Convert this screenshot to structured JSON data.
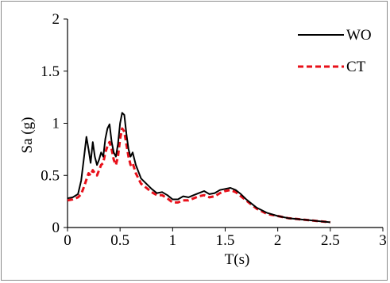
{
  "chart_data": {
    "type": "line",
    "xlabel": "T(s)",
    "ylabel": "Sa (g)",
    "xlim": [
      0,
      3
    ],
    "ylim": [
      0,
      2
    ],
    "xticks": [
      0,
      0.5,
      1,
      1.5,
      2,
      2.5,
      3
    ],
    "xtick_labels": [
      "0",
      "0.5",
      "1",
      "1.5",
      "2",
      "2.5",
      "3"
    ],
    "yticks": [
      0,
      0.5,
      1,
      1.5,
      2
    ],
    "ytick_labels": [
      "0",
      "0.5",
      "1",
      "1.5",
      "2"
    ],
    "grid": false,
    "legend_position": "top-right",
    "series": [
      {
        "name": "WO",
        "color": "#000000",
        "style": "solid",
        "x": [
          0,
          0.05,
          0.1,
          0.13,
          0.16,
          0.18,
          0.2,
          0.22,
          0.24,
          0.26,
          0.28,
          0.3,
          0.32,
          0.34,
          0.36,
          0.38,
          0.4,
          0.42,
          0.44,
          0.46,
          0.48,
          0.5,
          0.52,
          0.54,
          0.56,
          0.58,
          0.6,
          0.62,
          0.65,
          0.7,
          0.75,
          0.8,
          0.85,
          0.9,
          0.95,
          1.0,
          1.05,
          1.1,
          1.15,
          1.2,
          1.25,
          1.3,
          1.35,
          1.4,
          1.45,
          1.5,
          1.55,
          1.6,
          1.65,
          1.7,
          1.75,
          1.8,
          1.9,
          2.0,
          2.1,
          2.2,
          2.3,
          2.4,
          2.5
        ],
        "y": [
          0.28,
          0.29,
          0.32,
          0.45,
          0.7,
          0.87,
          0.75,
          0.62,
          0.82,
          0.68,
          0.6,
          0.65,
          0.72,
          0.68,
          0.85,
          0.95,
          0.99,
          0.82,
          0.72,
          0.68,
          0.8,
          1.0,
          1.1,
          1.08,
          0.9,
          0.75,
          0.68,
          0.72,
          0.6,
          0.47,
          0.42,
          0.37,
          0.33,
          0.34,
          0.31,
          0.27,
          0.27,
          0.3,
          0.29,
          0.31,
          0.33,
          0.35,
          0.32,
          0.33,
          0.36,
          0.37,
          0.38,
          0.36,
          0.32,
          0.27,
          0.23,
          0.19,
          0.14,
          0.11,
          0.09,
          0.08,
          0.07,
          0.06,
          0.05
        ]
      },
      {
        "name": "CT",
        "color": "#e8101a",
        "style": "dashed",
        "x": [
          0,
          0.05,
          0.1,
          0.13,
          0.16,
          0.18,
          0.2,
          0.22,
          0.24,
          0.26,
          0.28,
          0.3,
          0.32,
          0.34,
          0.36,
          0.38,
          0.4,
          0.42,
          0.44,
          0.46,
          0.48,
          0.5,
          0.52,
          0.54,
          0.56,
          0.58,
          0.6,
          0.62,
          0.65,
          0.7,
          0.75,
          0.8,
          0.85,
          0.9,
          0.95,
          1.0,
          1.05,
          1.1,
          1.15,
          1.2,
          1.25,
          1.3,
          1.35,
          1.4,
          1.45,
          1.5,
          1.55,
          1.6,
          1.65,
          1.7,
          1.75,
          1.8,
          1.9,
          2.0,
          2.1,
          2.2,
          2.3,
          2.4,
          2.5
        ],
        "y": [
          0.26,
          0.27,
          0.29,
          0.32,
          0.4,
          0.46,
          0.52,
          0.5,
          0.55,
          0.52,
          0.5,
          0.55,
          0.6,
          0.62,
          0.72,
          0.78,
          0.82,
          0.75,
          0.65,
          0.6,
          0.68,
          0.85,
          0.95,
          0.92,
          0.8,
          0.68,
          0.6,
          0.62,
          0.52,
          0.42,
          0.38,
          0.34,
          0.31,
          0.31,
          0.28,
          0.24,
          0.24,
          0.26,
          0.26,
          0.28,
          0.3,
          0.31,
          0.29,
          0.3,
          0.33,
          0.35,
          0.36,
          0.34,
          0.3,
          0.26,
          0.22,
          0.18,
          0.13,
          0.11,
          0.09,
          0.08,
          0.07,
          0.06,
          0.05
        ]
      }
    ]
  }
}
